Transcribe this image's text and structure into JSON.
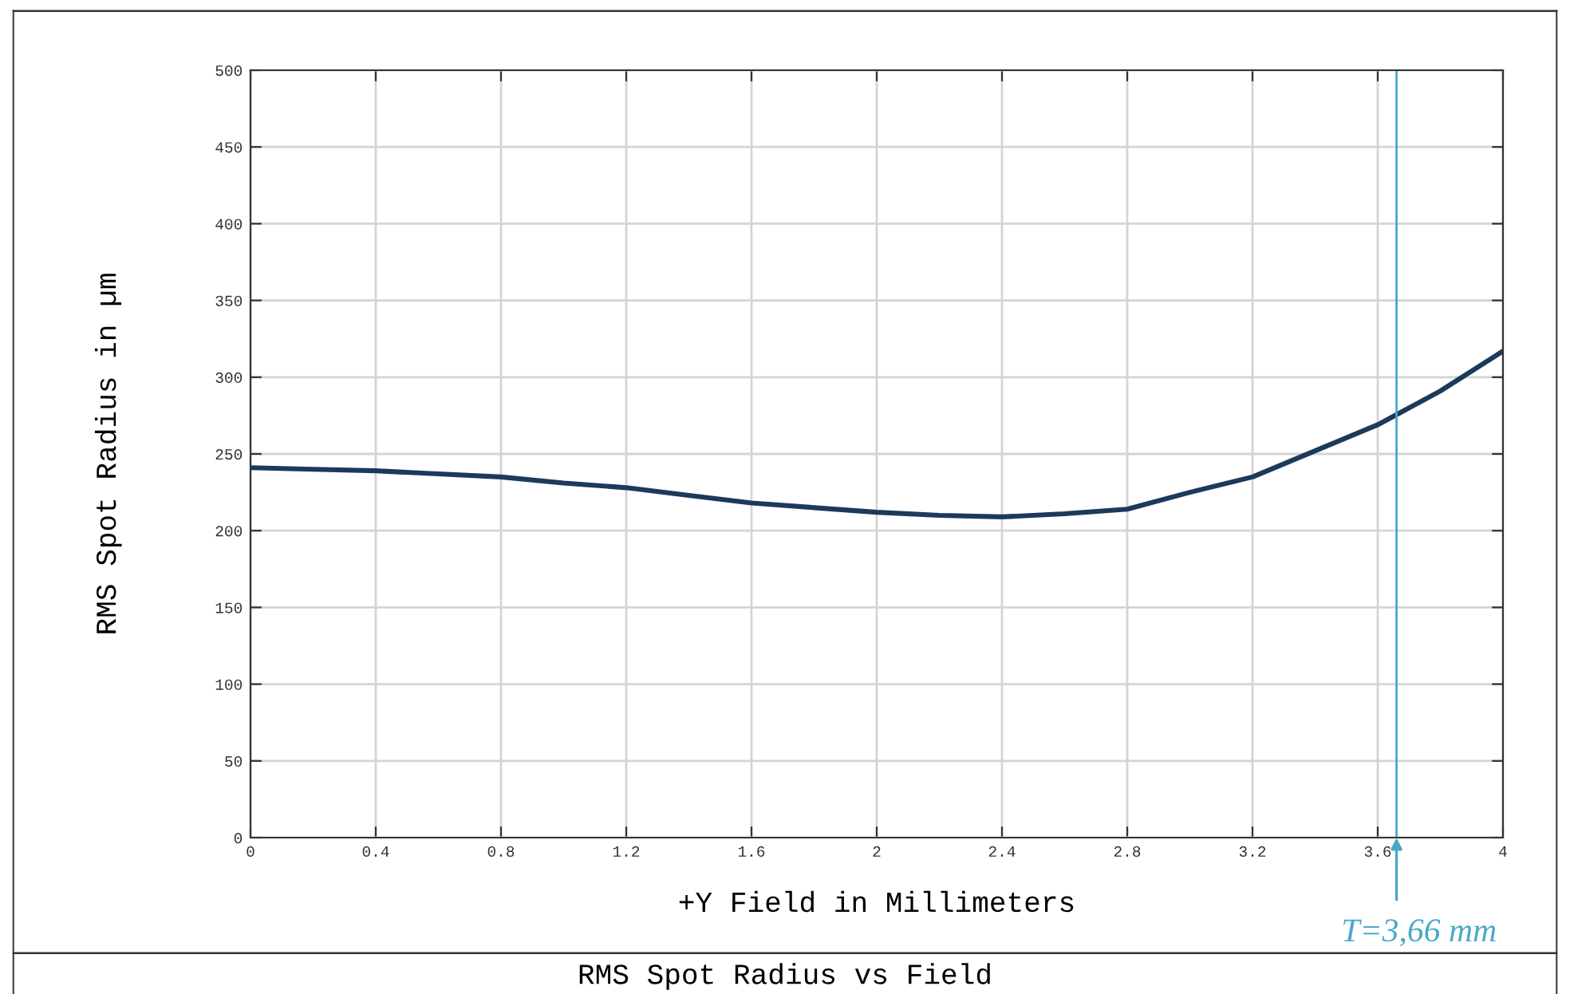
{
  "chart_data": {
    "type": "line",
    "title": "RMS Spot Radius vs Field",
    "xlabel": "+Y Field in Millimeters",
    "ylabel": "RMS Spot Radius in µm",
    "x": [
      0,
      0.2,
      0.4,
      0.6,
      0.8,
      1.0,
      1.2,
      1.4,
      1.6,
      1.8,
      2.0,
      2.2,
      2.4,
      2.6,
      2.8,
      3.0,
      3.2,
      3.4,
      3.6,
      3.8,
      4.0
    ],
    "series": [
      {
        "color": "#1b3a5c",
        "values": [
          241,
          240,
          239,
          237,
          235,
          231,
          228,
          223,
          218,
          215,
          212,
          210,
          209,
          211,
          214,
          225,
          235,
          252,
          269,
          291,
          317
        ]
      }
    ],
    "xlim": [
      0,
      4
    ],
    "xticks": [
      0,
      0.4,
      0.8,
      1.2,
      1.6,
      2,
      2.4,
      2.8,
      3.2,
      3.6,
      4
    ],
    "ylim": [
      0,
      500
    ],
    "yticks": [
      0,
      50,
      100,
      150,
      200,
      250,
      300,
      350,
      400,
      450,
      500
    ],
    "grid": true,
    "marker": "none",
    "line_style": "solid",
    "ref_lines": [
      {
        "axis": "x",
        "value": 3.66,
        "label": "T=3,66 mm",
        "color": "#4aa8c8",
        "line_style": "solid"
      }
    ]
  }
}
